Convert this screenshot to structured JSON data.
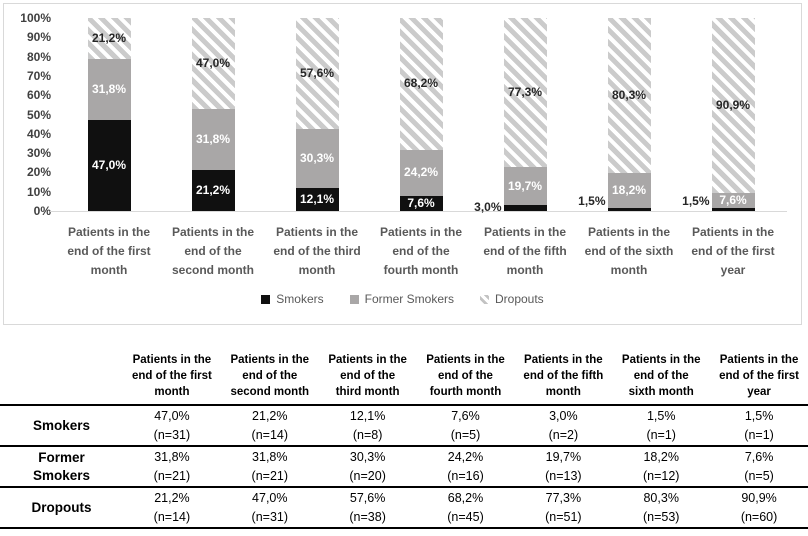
{
  "chart_data": {
    "type": "bar",
    "subtype": "stacked-100-percent",
    "title": "",
    "xlabel": "",
    "ylabel": "",
    "ylim": [
      0,
      100
    ],
    "grid": false,
    "legend_position": "bottom",
    "y_ticks": [
      "100%",
      "90%",
      "80%",
      "70%",
      "60%",
      "50%",
      "40%",
      "30%",
      "20%",
      "10%",
      "0%"
    ],
    "categories": [
      "Patients in the\nend of the first\nmonth",
      "Patients in the\nend of the\nsecond month",
      "Patients in the\nend of the third\nmonth",
      "Patients in the\nend of the\nfourth month",
      "Patients in the\nend of the fifth\nmonth",
      "Patients in the\nend of the sixth\nmonth",
      "Patients in the\nend of the first\nyear"
    ],
    "series": [
      {
        "key": "smokers",
        "name": "Smokers",
        "color": "#101010",
        "values": [
          47.0,
          21.2,
          12.1,
          7.6,
          3.0,
          1.5,
          1.5
        ],
        "labels": [
          "47,0%",
          "21,2%",
          "12,1%",
          "7,6%",
          "3,0%",
          "1,5%",
          "1,5%"
        ],
        "label_outside": [
          false,
          false,
          false,
          false,
          true,
          true,
          true
        ]
      },
      {
        "key": "former",
        "name": "Former Smokers",
        "color": "#a9a7a7",
        "values": [
          31.8,
          31.8,
          30.3,
          24.2,
          19.7,
          18.2,
          7.6
        ],
        "labels": [
          "31,8%",
          "31,8%",
          "30,3%",
          "24,2%",
          "19,7%",
          "18,2%",
          "7,6%"
        ],
        "label_outside": [
          false,
          false,
          false,
          false,
          false,
          false,
          false
        ]
      },
      {
        "key": "dropouts",
        "name": "Dropouts",
        "pattern": "diagonal-hatch",
        "pattern_color": "#cbcbcb",
        "values": [
          21.2,
          47.0,
          57.6,
          68.2,
          77.3,
          80.3,
          90.9
        ],
        "labels": [
          "21,2%",
          "47,0%",
          "57,6%",
          "68,2%",
          "77,3%",
          "80,3%",
          "90,9%"
        ],
        "label_outside": [
          false,
          false,
          false,
          false,
          false,
          false,
          false
        ]
      }
    ]
  },
  "table": {
    "col_headers": [
      "Patients in the\nend of the first\nmonth",
      "Patients in the\nend of the\nsecond month",
      "Patients in the\nend of the\nthird month",
      "Patients in the\nend of the\nfourth month",
      "Patients in the\nend of the fifth\nmonth",
      "Patients in the\nend of the\nsixth month",
      "Patients in the\nend of the first\nyear"
    ],
    "rows": [
      {
        "label": "Smokers",
        "cells": [
          "47,0%\n(n=31)",
          "21,2%\n(n=14)",
          "12,1%\n(n=8)",
          "7,6%\n(n=5)",
          "3,0%\n(n=2)",
          "1,5%\n(n=1)",
          "1,5%\n(n=1)"
        ]
      },
      {
        "label": "Former\nSmokers",
        "cells": [
          "31,8%\n(n=21)",
          "31,8%\n(n=21)",
          "30,3%\n(n=20)",
          "24,2%\n(n=16)",
          "19,7%\n(n=13)",
          "18,2%\n(n=12)",
          "7,6%\n(n=5)"
        ]
      },
      {
        "label": "Dropouts",
        "cells": [
          "21,2%\n(n=14)",
          "47,0%\n(n=31)",
          "57,6%\n(n=38)",
          "68,2%\n(n=45)",
          "77,3%\n(n=51)",
          "80,3%\n(n=53)",
          "90,9%\n(n=60)"
        ]
      }
    ]
  },
  "colors": {
    "smokers": "#101010",
    "former_smokers": "#a9a7a7",
    "dropouts_hatch": "#cbcbcb",
    "axis_line": "#d9d9d9",
    "panel_border": "#d9d9d9",
    "axis_text": "#404040",
    "category_text": "#595959",
    "dark_label": "#262626",
    "table_line": "#000000"
  }
}
